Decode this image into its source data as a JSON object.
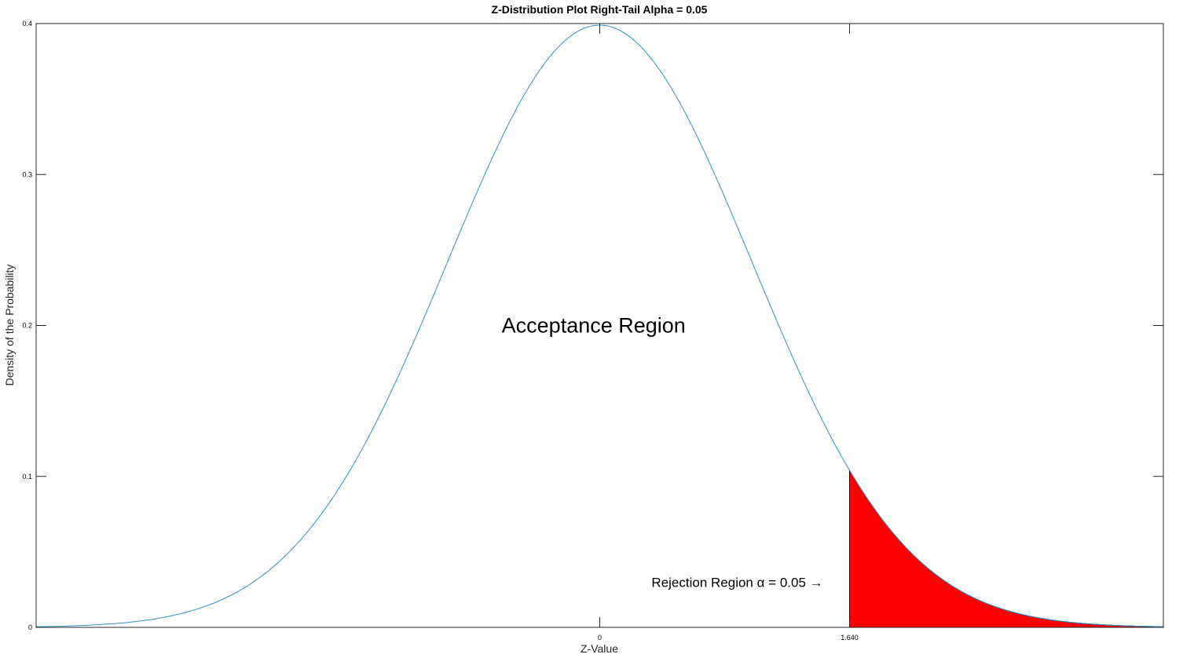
{
  "chart_data": {
    "type": "area",
    "title": "Z-Distribution Plot Right-Tail Alpha = 0.05",
    "xlabel": "Z-Value",
    "ylabel": "Density of the Probability",
    "xlim": [
      -3.7,
      3.7
    ],
    "ylim": [
      0,
      0.4
    ],
    "x_ticks": [
      {
        "value": 0,
        "label": "0"
      },
      {
        "value": 1.64,
        "label": "1.640"
      }
    ],
    "y_ticks": [
      {
        "value": 0,
        "label": "0"
      },
      {
        "value": 0.1,
        "label": "0.1"
      },
      {
        "value": 0.2,
        "label": "0.2"
      },
      {
        "value": 0.3,
        "label": "0.3"
      },
      {
        "value": 0.4,
        "label": "0.4"
      }
    ],
    "series": [
      {
        "distribution": "standard normal pdf",
        "x_range": [
          -3.7,
          3.7
        ],
        "color": "#2f8fc9"
      }
    ],
    "shaded_region": {
      "from": 1.64,
      "to": 3.7,
      "color": "#ff0000",
      "edge_color": "#000000"
    },
    "annotations": [
      {
        "text": "Acceptance Region",
        "x": -0.04,
        "y": 0.2
      },
      {
        "text": "Rejection Region α = 0.05 →",
        "x": 0.34,
        "y": 0.03
      }
    ],
    "grid": false,
    "box": true
  }
}
